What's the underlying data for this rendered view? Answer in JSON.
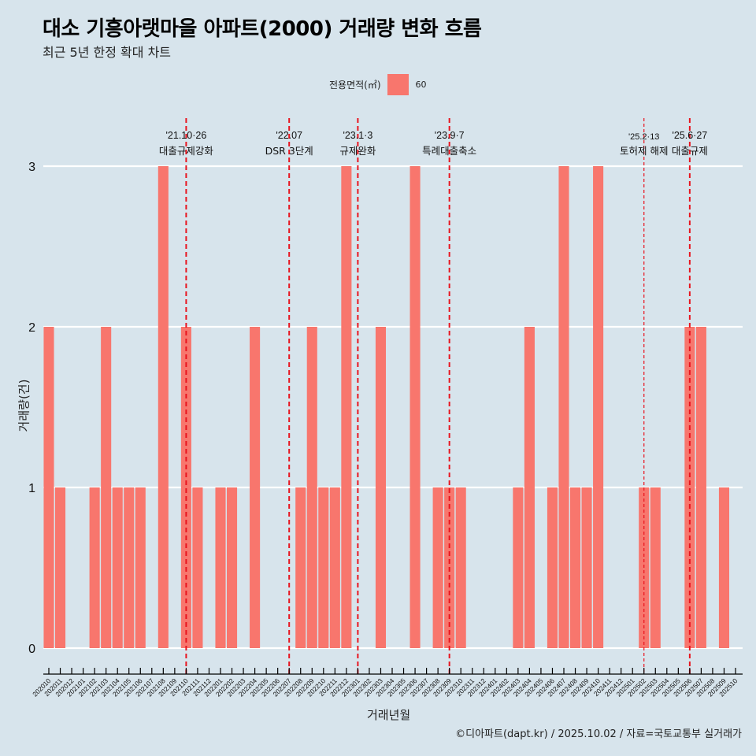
{
  "header": {
    "title": "대소 기흥아랫마을 아파트(2000) 거래량 변화 흐름",
    "subtitle": "최근 5년 한정 확대 차트"
  },
  "legend": {
    "title": "전용면적(㎡)",
    "items": [
      {
        "label": "60",
        "color": "#F8766D"
      }
    ]
  },
  "footer": {
    "caption": "©디아파트(dapt.kr) / 2025.10.02 / 자료=국토교통부 실거래가"
  },
  "colors": {
    "background": "#D7E4EC",
    "bar": "#F8766D",
    "gridline": "#FFFFFF",
    "event_line": "#E8141E",
    "axis": "#000000"
  },
  "chart_data": {
    "type": "bar",
    "title": "대소 기흥아랫마을 아파트(2000) 거래량 변화 흐름",
    "subtitle": "최근 5년 한정 확대 차트",
    "xlabel": "거래년월",
    "ylabel": "거래량(건)",
    "ylim": [
      0,
      3
    ],
    "yticks": [
      0,
      1,
      2,
      3
    ],
    "grid": true,
    "legend_position": "top",
    "categories": [
      "202010",
      "202011",
      "202012",
      "202101",
      "202102",
      "202103",
      "202104",
      "202105",
      "202106",
      "202107",
      "202108",
      "202109",
      "202110",
      "202111",
      "202112",
      "202201",
      "202202",
      "202203",
      "202204",
      "202205",
      "202206",
      "202207",
      "202208",
      "202209",
      "202210",
      "202211",
      "202212",
      "202301",
      "202302",
      "202303",
      "202304",
      "202305",
      "202306",
      "202307",
      "202308",
      "202309",
      "202310",
      "202311",
      "202312",
      "202401",
      "202402",
      "202403",
      "202404",
      "202405",
      "202406",
      "202407",
      "202408",
      "202409",
      "202410",
      "202411",
      "202412",
      "202501",
      "202502",
      "202503",
      "202504",
      "202505",
      "202506",
      "202507",
      "202508",
      "202509",
      "202510"
    ],
    "series": [
      {
        "name": "60",
        "values": [
          2,
          1,
          0,
          0,
          1,
          2,
          1,
          1,
          1,
          0,
          3,
          0,
          2,
          1,
          0,
          1,
          1,
          0,
          2,
          0,
          0,
          0,
          1,
          2,
          1,
          1,
          3,
          0,
          0,
          2,
          0,
          0,
          3,
          0,
          1,
          1,
          1,
          0,
          0,
          0,
          0,
          1,
          2,
          0,
          1,
          3,
          1,
          1,
          3,
          0,
          0,
          0,
          1,
          1,
          0,
          0,
          2,
          2,
          0,
          1,
          0
        ]
      }
    ],
    "annotations": [
      {
        "category": "202110",
        "date": "'21.10·26",
        "label": "대출규제강화",
        "style": "bold"
      },
      {
        "category": "202207",
        "date": "'22.07",
        "label": "DSR 3단계",
        "style": "bold"
      },
      {
        "category": "202301",
        "date": "'23.1·3",
        "label": "규제완화",
        "style": "bold"
      },
      {
        "category": "202309",
        "date": "'23.9·7",
        "label": "특례대출축소",
        "style": "bold"
      },
      {
        "category": "202502",
        "date": "'25.2·13",
        "label": "토허제 해제",
        "style": "thin"
      },
      {
        "category": "202506",
        "date": "'25.6·27",
        "label": "대출규제",
        "style": "bold"
      }
    ]
  }
}
